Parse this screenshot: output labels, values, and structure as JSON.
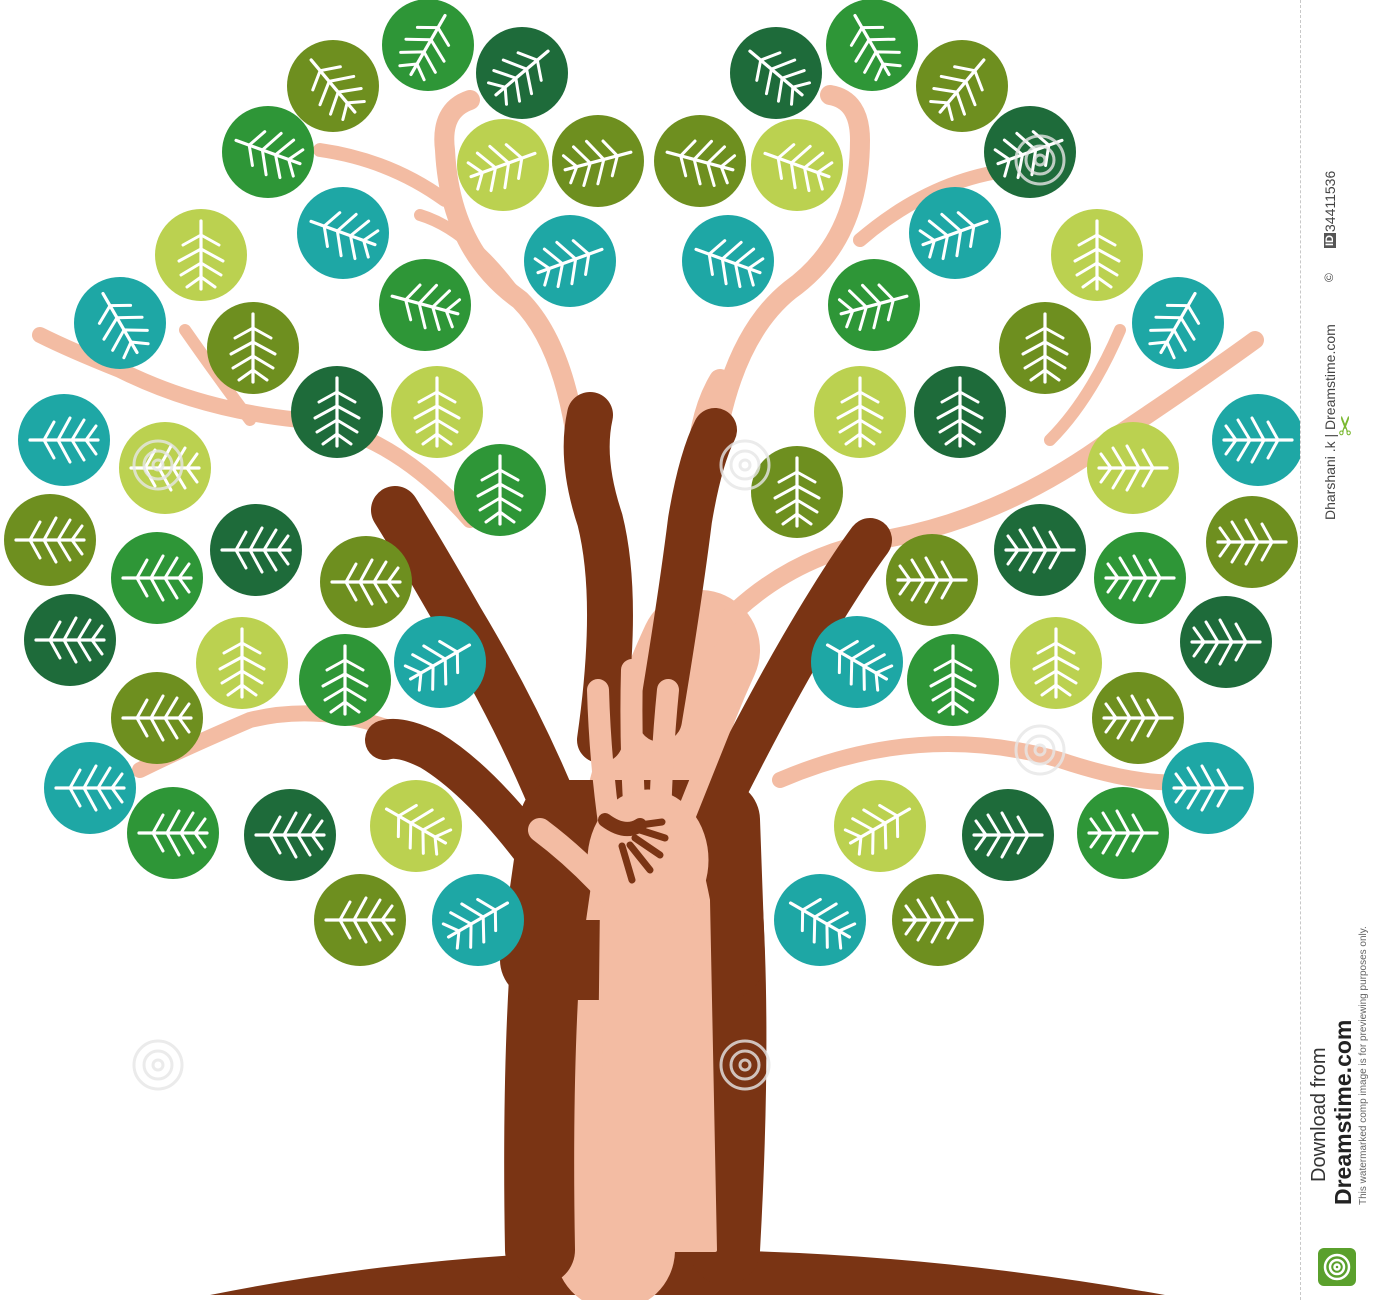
{
  "sidebar": {
    "id_label": "ID",
    "id_value": "34411536",
    "author_icon": "©",
    "author": "Dharshani .k | Dreamstime.com",
    "download_line": "Download from",
    "site_line": "Dreamstime.com",
    "notice": "This watermarked comp image is for previewing purposes only."
  },
  "watermark": {
    "text": "dreamstime"
  },
  "colors": {
    "leaf_palette": [
      "#2e9637",
      "#1e6b3a",
      "#6e8f1f",
      "#bbd150",
      "#1ea7a5"
    ],
    "trunk_dark": "#7a3414",
    "trunk_light": "#f3bca3",
    "accent": "#5aa02c"
  },
  "icons": {
    "sidebar_logo": "swirl-logo-icon",
    "cut_mark": "scissors-icon"
  }
}
